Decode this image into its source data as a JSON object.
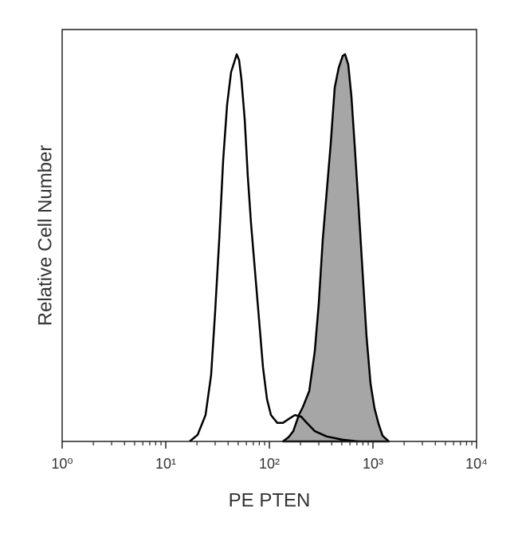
{
  "chart_data": {
    "type": "histogram-overlay",
    "xlabel": "PE PTEN",
    "ylabel": "Relative Cell Number",
    "xscale": "log",
    "xlim": [
      1,
      10000
    ],
    "ylim": [
      0,
      100
    ],
    "xticks": [
      {
        "value": 1,
        "label": "10⁰"
      },
      {
        "value": 10,
        "label": "10¹"
      },
      {
        "value": 100,
        "label": "10²"
      },
      {
        "value": 1000,
        "label": "10³"
      },
      {
        "value": 10000,
        "label": "10⁴"
      }
    ],
    "xminorticks": [
      2,
      3,
      4,
      5,
      6,
      7,
      8,
      9,
      20,
      30,
      40,
      50,
      60,
      70,
      80,
      90,
      200,
      300,
      400,
      500,
      600,
      700,
      800,
      900,
      2000,
      3000,
      4000,
      5000,
      6000,
      7000,
      8000,
      9000
    ],
    "series": [
      {
        "color": "#a6a6a6",
        "filled": true,
        "x": [
          135.2,
          153.1,
          170.2,
          192.6,
          210.2,
          242.5,
          274.4,
          299.9,
          327.6,
          357.9,
          390.9,
          427.2,
          466.8,
          510.2,
          538.3,
          577.6,
          619.6,
          665.6,
          727.8,
          794.3,
          867.0,
          947.5,
          1035,
          1132,
          1236,
          1426
        ],
        "values": [
          0,
          1.0,
          2.5,
          6.4,
          8.3,
          12.2,
          21.9,
          33.5,
          49.0,
          60.7,
          72.3,
          85.9,
          90.7,
          93.6,
          94.0,
          91.5,
          83.7,
          72.1,
          56.6,
          41.1,
          25.6,
          14.0,
          8.1,
          4.3,
          1.4,
          0
        ]
      },
      {
        "color": "#000000",
        "filled": false,
        "x": [
          17.0,
          20.3,
          24.2,
          27.4,
          30.0,
          32.8,
          35.8,
          39.1,
          42.7,
          45.9,
          48.4,
          51.0,
          53.8,
          57.8,
          61.9,
          66.5,
          72.7,
          79.4,
          86.8,
          94.9,
          103.6,
          119.4,
          135.2,
          153.1,
          176.2,
          203.2,
          230.1,
          274.4,
          357.9,
          510.2,
          727.8
        ],
        "values": [
          0,
          1.6,
          6.4,
          16.1,
          31.6,
          49.0,
          68.2,
          81.8,
          89.7,
          92.1,
          94.0,
          92.6,
          87.8,
          78.1,
          64.5,
          52.9,
          41.3,
          29.7,
          18.0,
          10.3,
          6.4,
          4.5,
          4.5,
          5.4,
          6.4,
          6.0,
          4.5,
          2.5,
          1.2,
          0.4,
          0
        ]
      }
    ]
  }
}
